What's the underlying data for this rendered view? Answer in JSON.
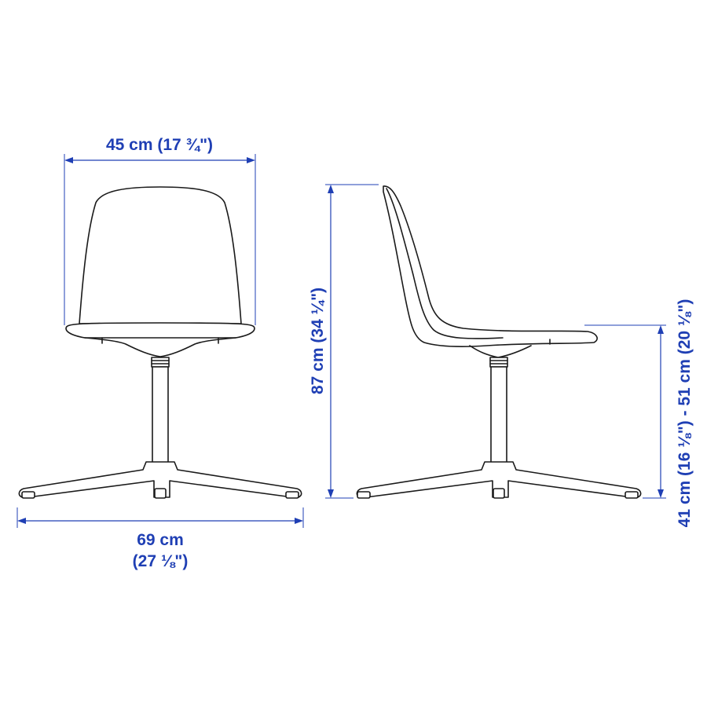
{
  "colors": {
    "dimension": "#1f3fb4",
    "outline": "#1a1a1a",
    "background": "#ffffff"
  },
  "dimensions": {
    "width": "45 cm (17 ¾\")",
    "depth_cm": "69 cm",
    "depth_in": "(27 ⅛\")",
    "height": "87 cm (34 ¼\")",
    "seat_height": "41 cm (16 ⅛\") - 51 cm (20 ⅛\")"
  }
}
